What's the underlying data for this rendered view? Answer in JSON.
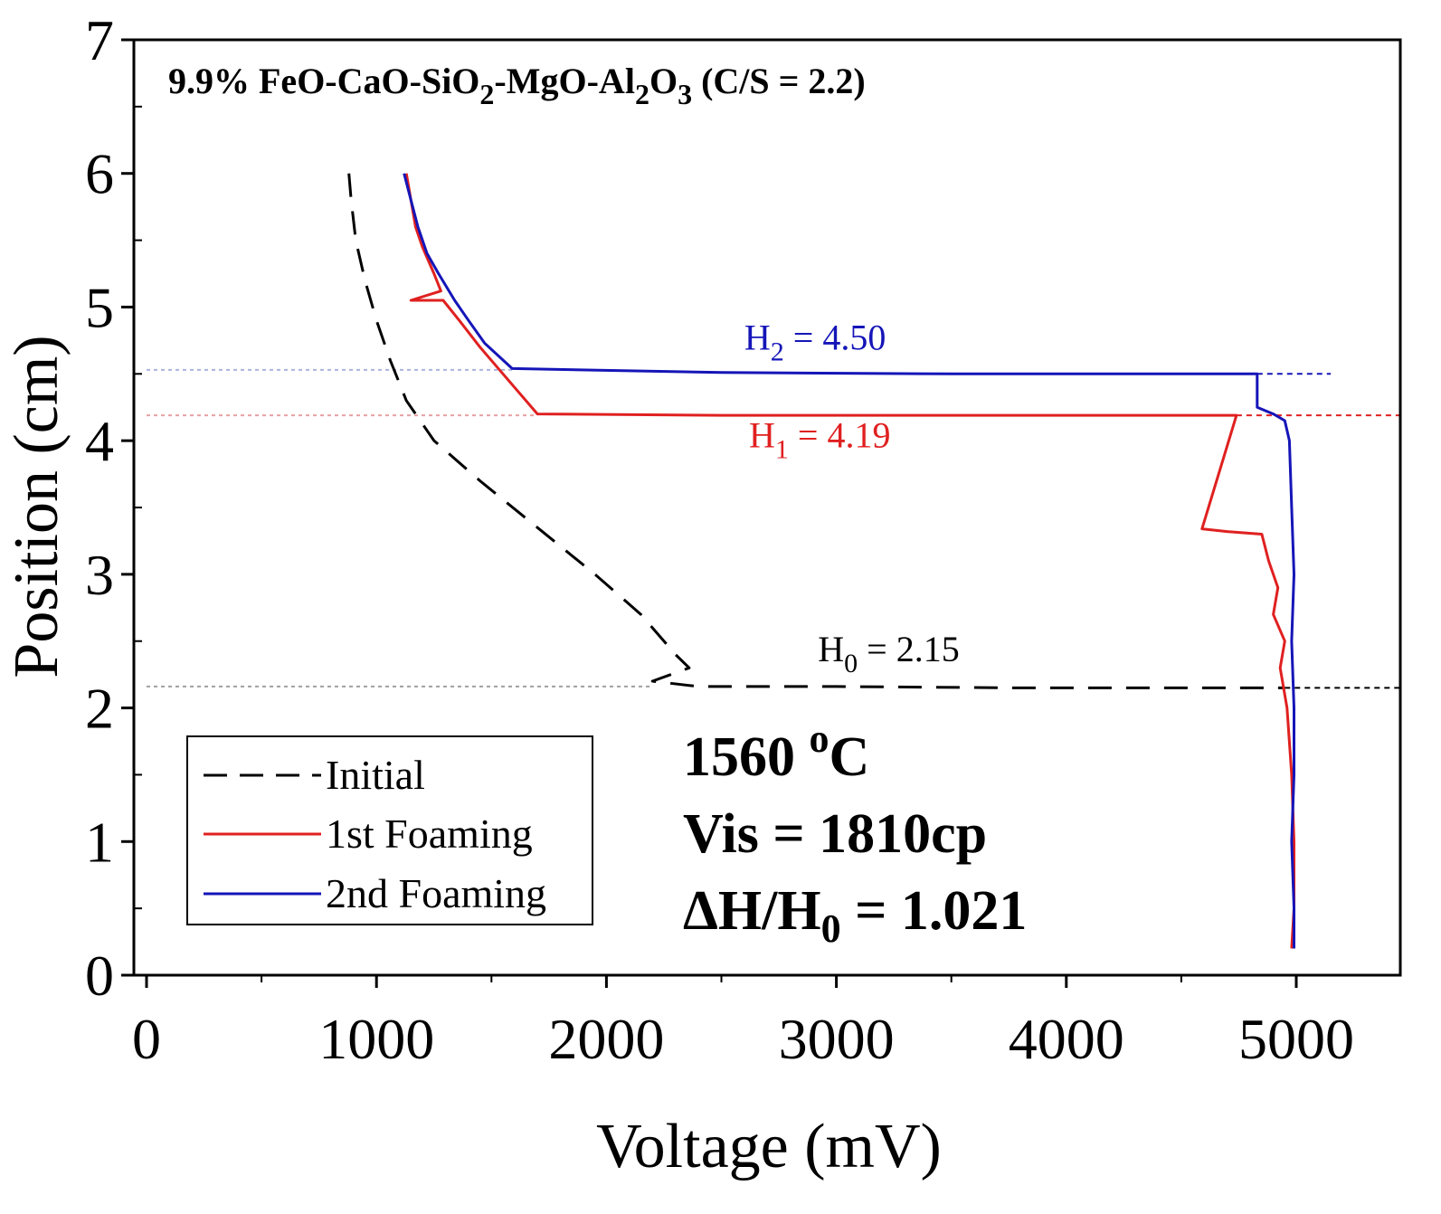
{
  "chart_data": {
    "type": "line",
    "title": {
      "prefix": "9.9% FeO-CaO-SiO",
      "sub1": "2",
      "mid": "-MgO-Al",
      "sub2": "2",
      "mid2": "O",
      "sub3": "3",
      "suffix": " (C/S = 2.2)"
    },
    "xlabel": "Voltage (mV)",
    "ylabel": "Position (cm)",
    "xlim": [
      0,
      5500
    ],
    "ylim": [
      0,
      7
    ],
    "x_ticks": [
      0,
      1000,
      2000,
      3000,
      4000,
      5000
    ],
    "y_ticks": [
      0,
      1,
      2,
      3,
      4,
      5,
      6,
      7
    ],
    "x_minor_step": 500,
    "y_minor_step": 0.5,
    "series": [
      {
        "name": "Initial",
        "color": "#000000",
        "style": "dashed",
        "points": [
          [
            880,
            6.0
          ],
          [
            890,
            5.8
          ],
          [
            910,
            5.5
          ],
          [
            950,
            5.2
          ],
          [
            1000,
            4.9
          ],
          [
            1060,
            4.6
          ],
          [
            1130,
            4.3
          ],
          [
            1250,
            4.0
          ],
          [
            1450,
            3.7
          ],
          [
            1700,
            3.35
          ],
          [
            1950,
            3.0
          ],
          [
            2150,
            2.7
          ],
          [
            2300,
            2.4
          ],
          [
            2360,
            2.3
          ],
          [
            2200,
            2.2
          ],
          [
            2400,
            2.16
          ],
          [
            3000,
            2.16
          ],
          [
            3800,
            2.15
          ],
          [
            4400,
            2.15
          ],
          [
            4850,
            2.15
          ],
          [
            4950,
            2.15
          ]
        ]
      },
      {
        "name": "1st Foaming",
        "color": "#e02020",
        "style": "solid",
        "points": [
          [
            1130,
            6.0
          ],
          [
            1150,
            5.8
          ],
          [
            1170,
            5.6
          ],
          [
            1200,
            5.45
          ],
          [
            1250,
            5.25
          ],
          [
            1280,
            5.12
          ],
          [
            1150,
            5.05
          ],
          [
            1290,
            5.05
          ],
          [
            1360,
            4.9
          ],
          [
            1450,
            4.7
          ],
          [
            1550,
            4.5
          ],
          [
            1700,
            4.2
          ],
          [
            2500,
            4.19
          ],
          [
            3500,
            4.19
          ],
          [
            4500,
            4.19
          ],
          [
            4740,
            4.19
          ],
          [
            4590,
            3.34
          ],
          [
            4700,
            3.32
          ],
          [
            4850,
            3.3
          ],
          [
            4880,
            3.1
          ],
          [
            4920,
            2.9
          ],
          [
            4900,
            2.7
          ],
          [
            4950,
            2.5
          ],
          [
            4930,
            2.3
          ],
          [
            4960,
            2.0
          ],
          [
            4980,
            1.5
          ],
          [
            4990,
            1.0
          ],
          [
            4990,
            0.5
          ],
          [
            4980,
            0.2
          ]
        ]
      },
      {
        "name": "2nd Foaming",
        "color": "#1515b8",
        "style": "solid",
        "points": [
          [
            1120,
            6.0
          ],
          [
            1150,
            5.8
          ],
          [
            1180,
            5.6
          ],
          [
            1220,
            5.4
          ],
          [
            1270,
            5.25
          ],
          [
            1340,
            5.05
          ],
          [
            1400,
            4.9
          ],
          [
            1470,
            4.73
          ],
          [
            1590,
            4.54
          ],
          [
            2500,
            4.51
          ],
          [
            3500,
            4.5
          ],
          [
            4500,
            4.5
          ],
          [
            4830,
            4.5
          ],
          [
            4830,
            4.25
          ],
          [
            4900,
            4.2
          ],
          [
            4950,
            4.15
          ],
          [
            4970,
            4.0
          ],
          [
            4980,
            3.5
          ],
          [
            4990,
            3.0
          ],
          [
            4980,
            2.5
          ],
          [
            4990,
            2.0
          ],
          [
            4990,
            1.5
          ],
          [
            4980,
            1.0
          ],
          [
            4990,
            0.5
          ],
          [
            4990,
            0.2
          ]
        ]
      }
    ],
    "reference_lines": [
      {
        "y": 4.5,
        "color": "#1515b8",
        "x_from": 4830,
        "x_to": 5150
      },
      {
        "y": 4.19,
        "color": "#e02020",
        "x_from": 4740,
        "x_to": 5500
      },
      {
        "y": 2.15,
        "color": "#000000",
        "x_from": 4950,
        "x_to": 5500
      }
    ],
    "faint_lines": [
      {
        "y": 4.53,
        "color": "#aab4dd",
        "x_from": 0,
        "x_to": 1600
      },
      {
        "y": 4.19,
        "color": "#e8a0a0",
        "x_from": 0,
        "x_to": 1700
      },
      {
        "y": 2.16,
        "color": "#a0a0a0",
        "x_from": 0,
        "x_to": 2200
      }
    ],
    "annotations": [
      {
        "id": "h2",
        "main": "H",
        "sub": "2",
        "rest": " = 4.50",
        "color": "#1515b8",
        "x": 2600,
        "y": 4.68
      },
      {
        "id": "h1",
        "main": "H",
        "sub": "1",
        "rest": " = 4.19",
        "color": "#e02020",
        "x": 2620,
        "y": 3.95
      },
      {
        "id": "h0",
        "main": "H",
        "sub": "0",
        "rest": " = 2.15",
        "color": "#000000",
        "x": 2920,
        "y": 2.35
      }
    ],
    "conditions": {
      "temp_value": "1560 ",
      "temp_sup": "o",
      "temp_unit": "C",
      "vis": "Vis = 1810cp",
      "ratio_prefix": "ΔH/H",
      "ratio_sub": "0",
      "ratio_suffix": " = 1.021"
    },
    "legend": {
      "position": "bottom-left",
      "entries": [
        "Initial",
        "1st Foaming",
        "2nd Foaming"
      ]
    }
  }
}
